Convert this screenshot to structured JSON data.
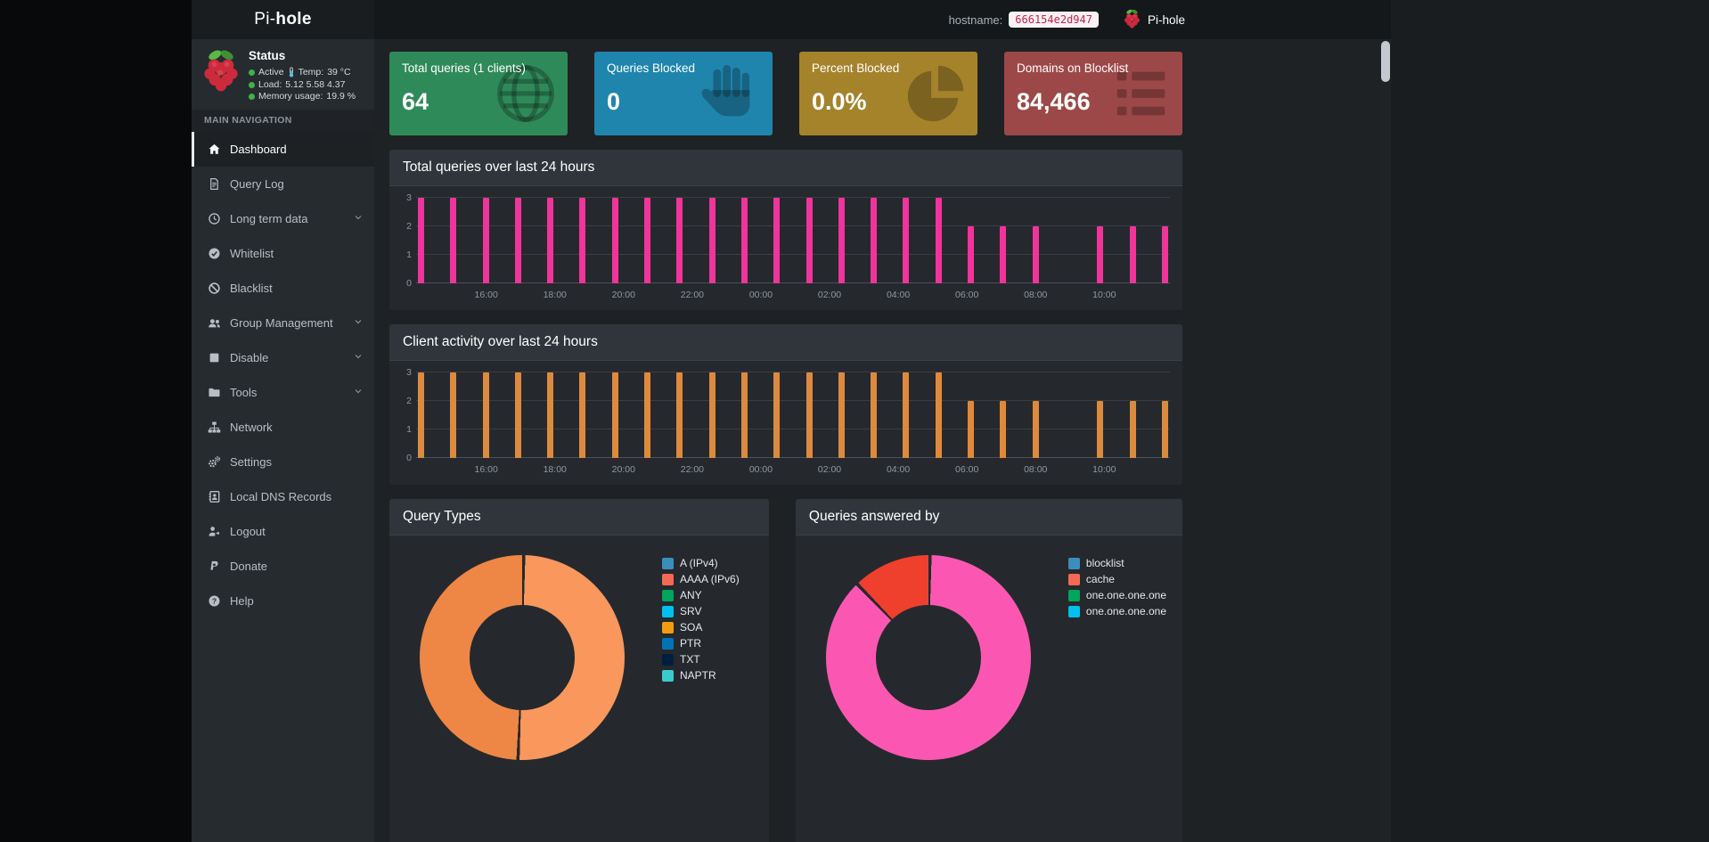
{
  "navbar": {
    "logo_prefix": "Pi-",
    "logo_bold": "hole",
    "hostname_label": "hostname:",
    "hostname_value": "666154e2d947",
    "brand_label": "Pi-hole"
  },
  "sidebar": {
    "status": {
      "title": "Status",
      "active_label": "Active",
      "temp_label": "Temp:",
      "temp_value": "39 °C",
      "load_label": "Load:",
      "load_values": "5.12  5.58  4.37",
      "memory_label": "Memory usage:",
      "memory_value": "19.9 %"
    },
    "nav_header": "MAIN NAVIGATION",
    "items": [
      {
        "label": "Dashboard",
        "icon": "home",
        "active": true,
        "expandable": false
      },
      {
        "label": "Query Log",
        "icon": "file",
        "active": false,
        "expandable": false
      },
      {
        "label": "Long term data",
        "icon": "clock",
        "active": false,
        "expandable": true
      },
      {
        "label": "Whitelist",
        "icon": "check-circle",
        "active": false,
        "expandable": false
      },
      {
        "label": "Blacklist",
        "icon": "ban",
        "active": false,
        "expandable": false
      },
      {
        "label": "Group Management",
        "icon": "users",
        "active": false,
        "expandable": true
      },
      {
        "label": "Disable",
        "icon": "stop",
        "active": false,
        "expandable": true
      },
      {
        "label": "Tools",
        "icon": "folder",
        "active": false,
        "expandable": true
      },
      {
        "label": "Network",
        "icon": "sitemap",
        "active": false,
        "expandable": false
      },
      {
        "label": "Settings",
        "icon": "gears",
        "active": false,
        "expandable": false
      },
      {
        "label": "Local DNS Records",
        "icon": "address-book",
        "active": false,
        "expandable": false
      },
      {
        "label": "Logout",
        "icon": "sign-out",
        "active": false,
        "expandable": false
      },
      {
        "label": "Donate",
        "icon": "paypal",
        "active": false,
        "expandable": false
      },
      {
        "label": "Help",
        "icon": "question",
        "active": false,
        "expandable": false
      }
    ]
  },
  "cards": [
    {
      "title": "Total queries (1 clients)",
      "value": "64",
      "color": "#2f8a5a",
      "icon": "globe"
    },
    {
      "title": "Queries Blocked",
      "value": "0",
      "color": "#1f85ad",
      "icon": "hand"
    },
    {
      "title": "Percent Blocked",
      "value": "0.0%",
      "color": "#a5832b",
      "icon": "pie-chart"
    },
    {
      "title": "Domains on Blocklist",
      "value": "84,466",
      "color": "#9d4848",
      "icon": "list"
    }
  ],
  "chart_data": [
    {
      "id": "total_queries",
      "type": "bar",
      "title": "Total queries over last 24 hours",
      "color": "#f0349b",
      "ylim": [
        0,
        3
      ],
      "yticks": [
        0,
        1,
        2,
        3
      ],
      "xticks": [
        "16:00",
        "18:00",
        "20:00",
        "22:00",
        "00:00",
        "02:00",
        "04:00",
        "06:00",
        "08:00",
        "10:00"
      ],
      "values": [
        3,
        3,
        3,
        3,
        3,
        3,
        3,
        3,
        3,
        3,
        3,
        3,
        3,
        3,
        3,
        3,
        3,
        2,
        2,
        2,
        0,
        2,
        2,
        2
      ]
    },
    {
      "id": "client_activity",
      "type": "bar",
      "title": "Client activity over last 24 hours",
      "color": "#de8a3e",
      "ylim": [
        0,
        3
      ],
      "yticks": [
        0,
        1,
        2,
        3
      ],
      "xticks": [
        "16:00",
        "18:00",
        "20:00",
        "22:00",
        "00:00",
        "02:00",
        "04:00",
        "06:00",
        "08:00",
        "10:00"
      ],
      "values": [
        3,
        3,
        3,
        3,
        3,
        3,
        3,
        3,
        3,
        3,
        3,
        3,
        3,
        3,
        3,
        3,
        3,
        2,
        2,
        2,
        0,
        2,
        2,
        2
      ]
    },
    {
      "id": "query_types",
      "type": "pie",
      "title": "Query Types",
      "slices": [
        {
          "label": "A (IPv4)",
          "pct": 50.4,
          "color": "#f9975c"
        },
        {
          "label": "AAAA (IPv6)",
          "pct": 49.6,
          "color": "#ee8745"
        }
      ],
      "legend": [
        {
          "label": "A (IPv4)",
          "color": "#3c8dbc"
        },
        {
          "label": "AAAA (IPv6)",
          "color": "#f56954"
        },
        {
          "label": "ANY",
          "color": "#00a65a"
        },
        {
          "label": "SRV",
          "color": "#00c0ef"
        },
        {
          "label": "SOA",
          "color": "#f39c12"
        },
        {
          "label": "PTR",
          "color": "#0073b7"
        },
        {
          "label": "TXT",
          "color": "#001f3f"
        },
        {
          "label": "NAPTR",
          "color": "#39cccc"
        }
      ]
    },
    {
      "id": "answered_by",
      "type": "pie",
      "title": "Queries answered by",
      "slices": [
        {
          "label": "one.one.one.one",
          "pct": 87.5,
          "color": "#fb57b2"
        },
        {
          "label": "cache",
          "pct": 12.5,
          "color": "#ef402e"
        }
      ],
      "legend": [
        {
          "label": "blocklist",
          "color": "#3c8dbc"
        },
        {
          "label": "cache",
          "color": "#f56954"
        },
        {
          "label": "one.one.one.one",
          "color": "#00a65a"
        },
        {
          "label": "one.one.one.one",
          "color": "#00c0ef"
        }
      ]
    }
  ]
}
